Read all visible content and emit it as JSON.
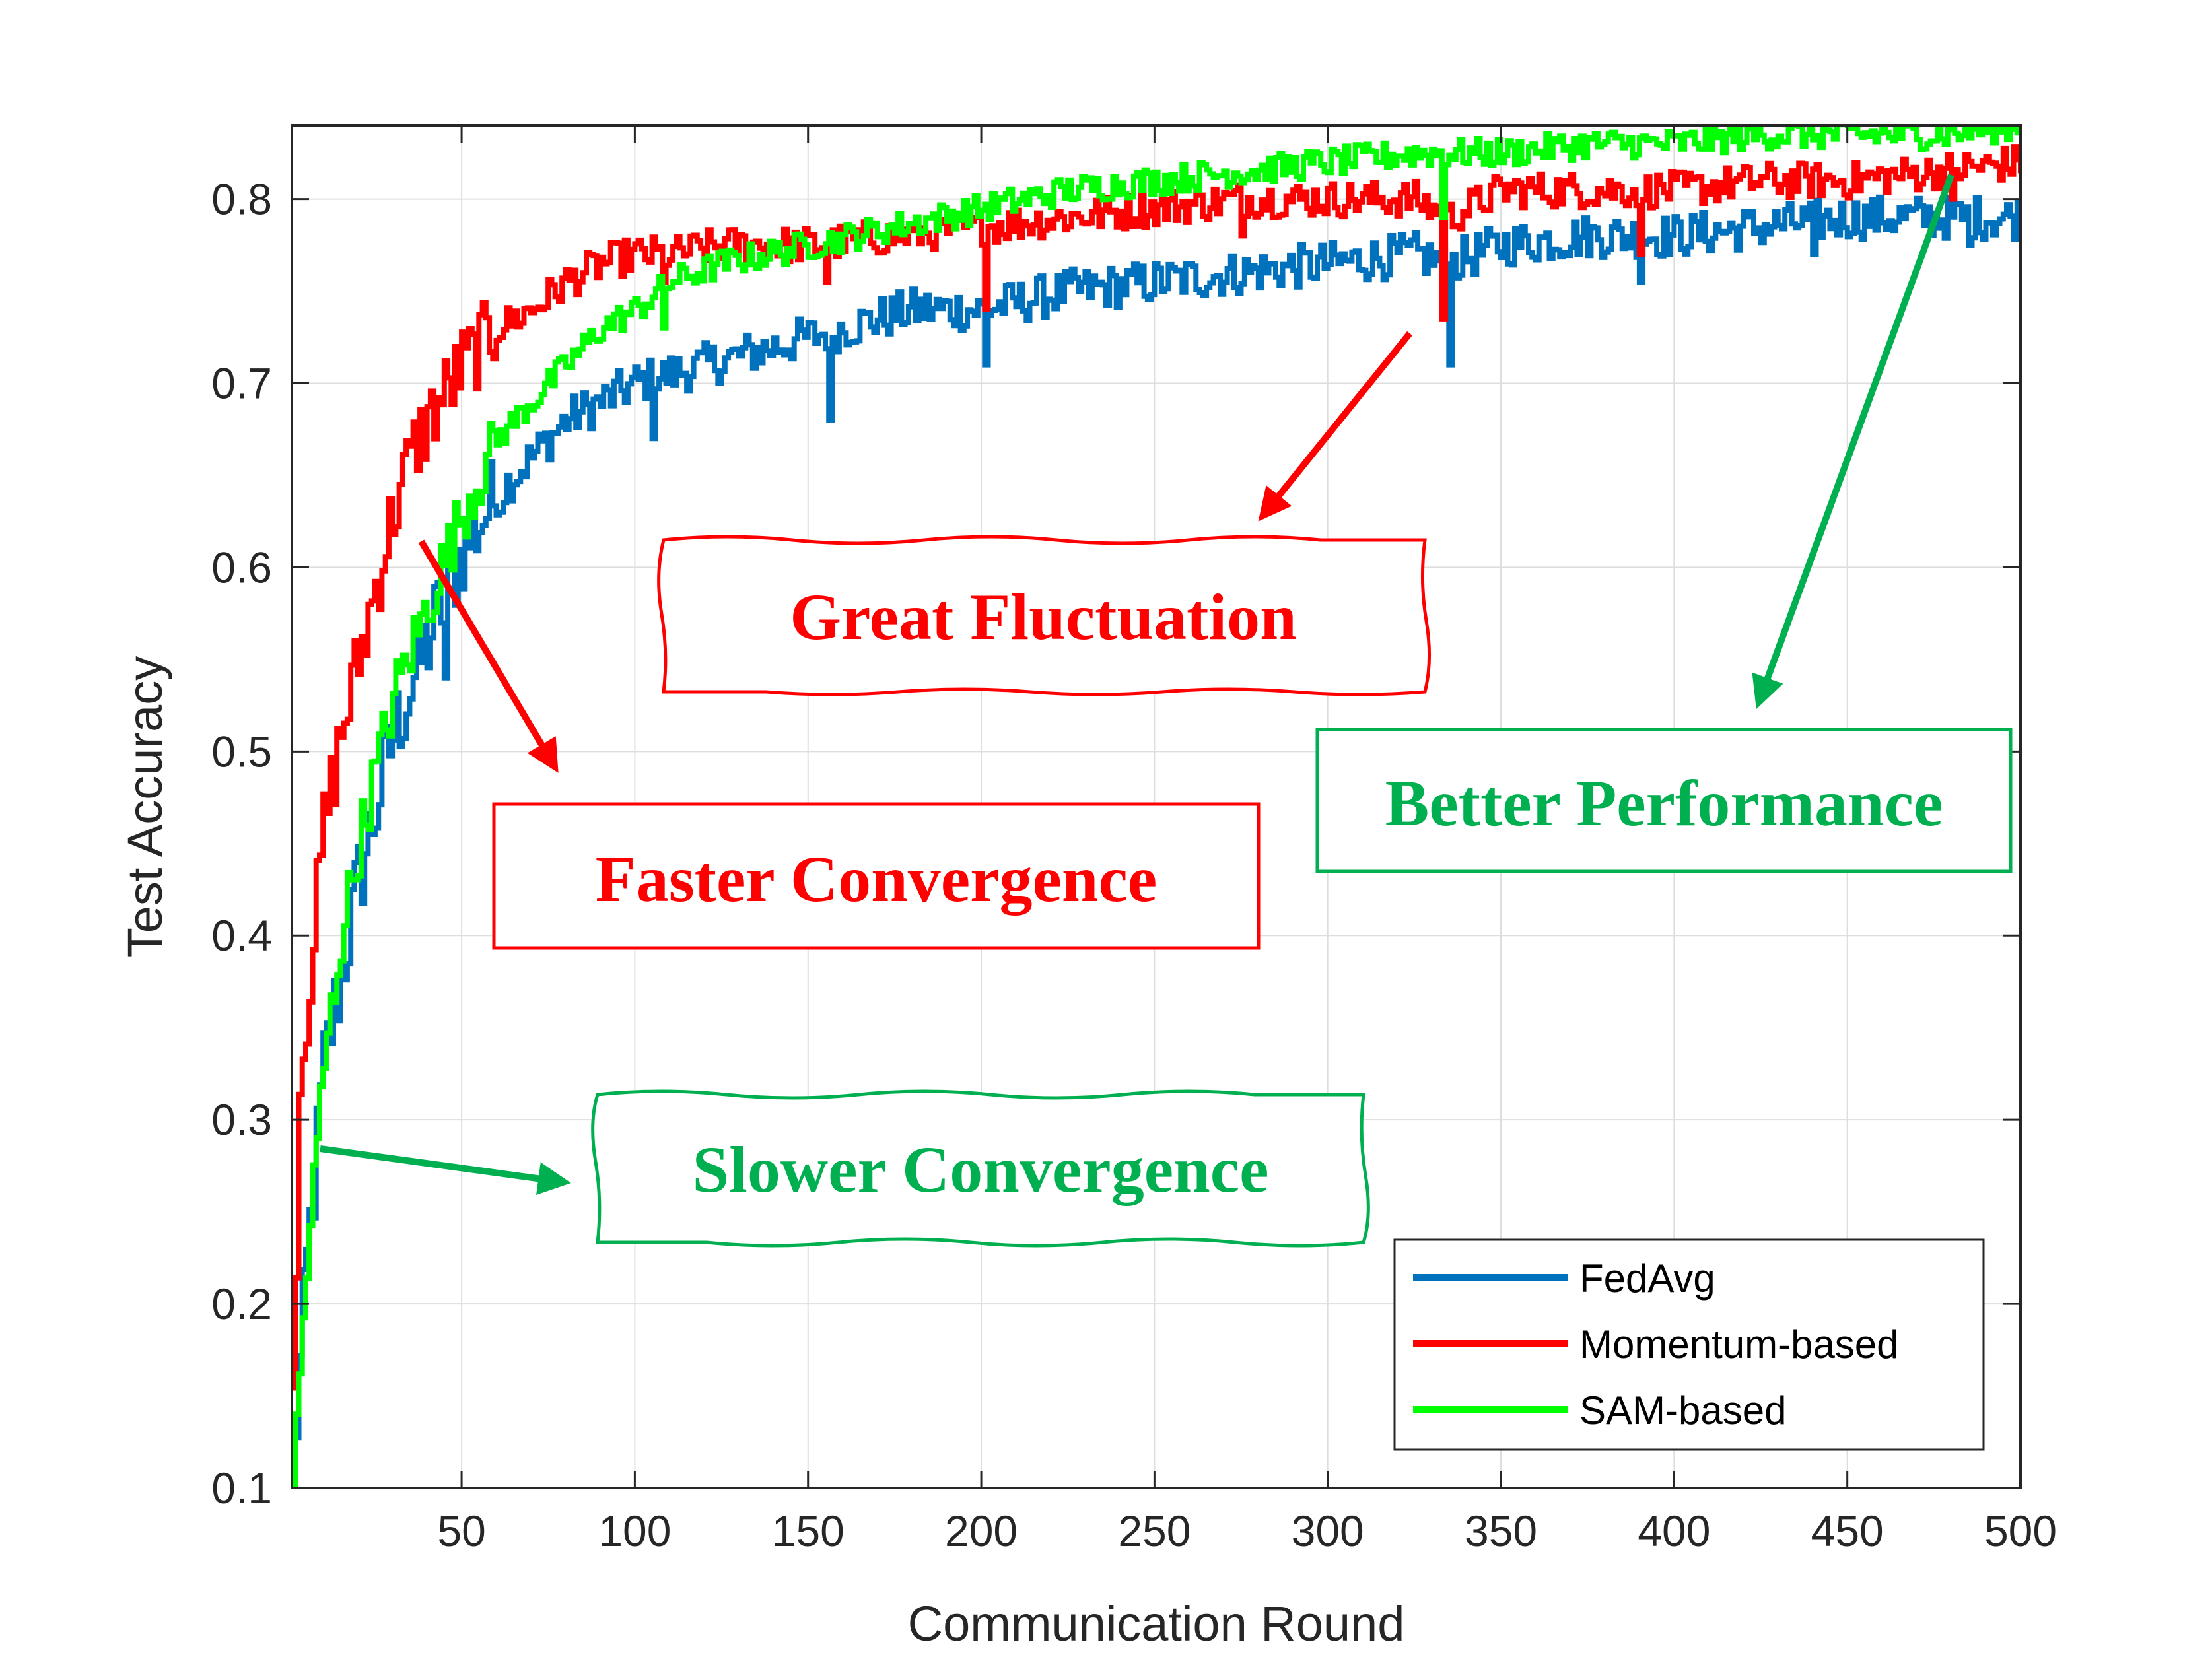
{
  "chart_data": {
    "type": "line",
    "title": "",
    "xlabel": "Communication Round",
    "ylabel": "Test Accuracy",
    "xlim": [
      1,
      500
    ],
    "ylim": [
      0.1,
      0.84
    ],
    "xticks": [
      50,
      100,
      150,
      200,
      250,
      300,
      350,
      400,
      450,
      500
    ],
    "yticks": [
      0.1,
      0.2,
      0.3,
      0.4,
      0.5,
      0.6,
      0.7,
      0.8
    ],
    "xtick_labels": [
      "50",
      "100",
      "150",
      "200",
      "250",
      "300",
      "350",
      "400",
      "450",
      "500"
    ],
    "ytick_labels": [
      "0.1",
      "0.2",
      "0.3",
      "0.4",
      "0.5",
      "0.6",
      "0.7",
      "0.8"
    ],
    "grid": true,
    "legend_position": "bottom-right",
    "series": [
      {
        "name": "FedAvg",
        "color": "#0072BD",
        "x": [
          1,
          5,
          10,
          15,
          20,
          25,
          30,
          40,
          50,
          60,
          70,
          80,
          90,
          100,
          120,
          140,
          160,
          180,
          200,
          225,
          250,
          275,
          300,
          325,
          335,
          350,
          375,
          400,
          425,
          450,
          475,
          500
        ],
        "y": [
          0.11,
          0.22,
          0.33,
          0.38,
          0.43,
          0.47,
          0.51,
          0.56,
          0.61,
          0.64,
          0.66,
          0.68,
          0.69,
          0.7,
          0.71,
          0.72,
          0.73,
          0.74,
          0.74,
          0.75,
          0.755,
          0.76,
          0.765,
          0.77,
          0.765,
          0.775,
          0.78,
          0.78,
          0.785,
          0.79,
          0.79,
          0.79
        ],
        "dips": [
          [
            45,
            0.54
          ],
          [
            61,
            0.63
          ],
          [
            105,
            0.67
          ],
          [
            156,
            0.68
          ],
          [
            201,
            0.71
          ],
          [
            335,
            0.71
          ],
          [
            390,
            0.755
          ],
          [
            440,
            0.77
          ],
          [
            485,
            0.775
          ]
        ]
      },
      {
        "name": "Momentum-based",
        "color": "#FF0000",
        "x": [
          1,
          3,
          6,
          10,
          15,
          20,
          25,
          30,
          35,
          40,
          50,
          60,
          70,
          80,
          90,
          100,
          110,
          125,
          150,
          175,
          200,
          225,
          250,
          275,
          300,
          325,
          335,
          350,
          375,
          400,
          425,
          450,
          475,
          500
        ],
        "y": [
          0.15,
          0.32,
          0.38,
          0.46,
          0.51,
          0.55,
          0.59,
          0.63,
          0.66,
          0.68,
          0.71,
          0.73,
          0.74,
          0.755,
          0.765,
          0.77,
          0.77,
          0.775,
          0.775,
          0.78,
          0.785,
          0.79,
          0.795,
          0.8,
          0.8,
          0.8,
          0.79,
          0.805,
          0.805,
          0.805,
          0.81,
          0.81,
          0.815,
          0.82
        ],
        "dips": [
          [
            108,
            0.755
          ],
          [
            155,
            0.755
          ],
          [
            201,
            0.74
          ],
          [
            275,
            0.78
          ],
          [
            333,
            0.735
          ],
          [
            390,
            0.77
          ],
          [
            480,
            0.8
          ]
        ]
      },
      {
        "name": "SAM-based",
        "color": "#00FF00",
        "x": [
          1,
          5,
          10,
          15,
          20,
          25,
          30,
          40,
          50,
          60,
          70,
          80,
          90,
          100,
          110,
          125,
          150,
          175,
          200,
          225,
          250,
          275,
          300,
          325,
          350,
          375,
          400,
          425,
          450,
          475,
          500
        ],
        "y": [
          0.1,
          0.22,
          0.33,
          0.4,
          0.45,
          0.49,
          0.53,
          0.58,
          0.63,
          0.67,
          0.69,
          0.71,
          0.73,
          0.74,
          0.755,
          0.765,
          0.775,
          0.785,
          0.795,
          0.805,
          0.81,
          0.815,
          0.82,
          0.825,
          0.825,
          0.83,
          0.83,
          0.835,
          0.835,
          0.835,
          0.84
        ],
        "dips": [
          [
            108,
            0.73
          ],
          [
            333,
            0.79
          ]
        ]
      }
    ],
    "annotations": [
      {
        "text": "Great Fluctuation",
        "color": "#FF0000"
      },
      {
        "text": "Faster Convergence",
        "color": "#FF0000"
      },
      {
        "text": "Better Performance",
        "color": "#00B050"
      },
      {
        "text": "Slower Convergence",
        "color": "#00B050"
      }
    ]
  }
}
